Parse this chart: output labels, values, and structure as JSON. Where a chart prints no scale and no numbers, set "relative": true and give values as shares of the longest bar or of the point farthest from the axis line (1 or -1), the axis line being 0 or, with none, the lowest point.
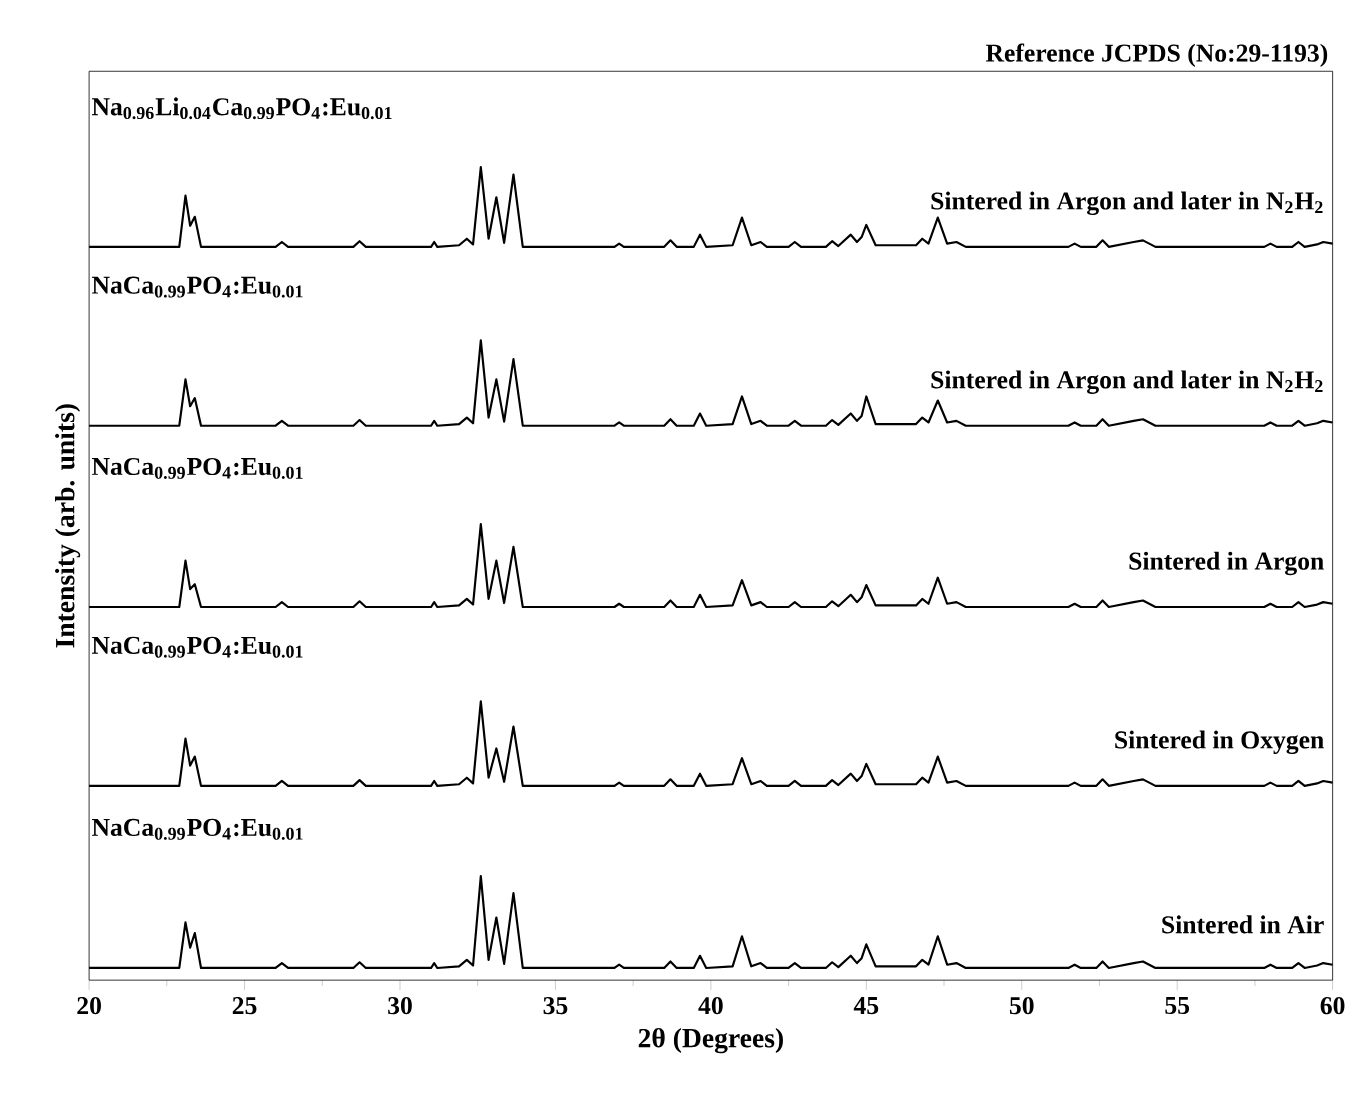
{
  "chart_data": {
    "type": "line",
    "relative": true,
    "xlabel": "2θ (Degrees)",
    "ylabel": "Intensity (arb. units)",
    "xlim": [
      20,
      60
    ],
    "xticks": [
      20,
      25,
      30,
      35,
      40,
      45,
      50,
      55,
      60
    ],
    "x": [
      20,
      22.9,
      23.1,
      23.25,
      23.4,
      23.6,
      26.0,
      26.2,
      26.4,
      28.5,
      28.7,
      28.9,
      31.0,
      31.1,
      31.2,
      31.9,
      32.15,
      32.35,
      32.6,
      32.85,
      33.1,
      33.35,
      33.65,
      33.95,
      36.9,
      37.05,
      37.2,
      38.5,
      38.7,
      38.9,
      39.45,
      39.65,
      39.85,
      40.7,
      41.0,
      41.3,
      41.6,
      41.8,
      42.5,
      42.7,
      42.9,
      43.7,
      43.9,
      44.1,
      44.5,
      44.7,
      44.85,
      45.0,
      45.3,
      46.6,
      46.8,
      47.0,
      47.3,
      47.6,
      47.9,
      48.2,
      51.5,
      51.7,
      51.9,
      52.4,
      52.6,
      52.8,
      53.6,
      53.9,
      54.3,
      57.8,
      58.0,
      58.2,
      58.7,
      58.9,
      59.1,
      59.5,
      59.7,
      60
    ],
    "series": [
      {
        "color": "#000000",
        "values": [
          0.015,
          0.015,
          0.071,
          0.04,
          0.058,
          0.015,
          0.015,
          0.021,
          0.015,
          0.015,
          0.022,
          0.015,
          0.015,
          0.021,
          0.015,
          0.017,
          0.025,
          0.018,
          0.128,
          0.025,
          0.077,
          0.02,
          0.107,
          0.015,
          0.015,
          0.019,
          0.015,
          0.015,
          0.023,
          0.015,
          0.015,
          0.03,
          0.015,
          0.017,
          0.054,
          0.017,
          0.021,
          0.015,
          0.015,
          0.021,
          0.015,
          0.015,
          0.022,
          0.016,
          0.03,
          0.021,
          0.027,
          0.044,
          0.017,
          0.017,
          0.025,
          0.019,
          0.054,
          0.019,
          0.021,
          0.015,
          0.015,
          0.019,
          0.015,
          0.015,
          0.023,
          0.015,
          0.021,
          0.023,
          0.015,
          0.015,
          0.019,
          0.015,
          0.015,
          0.021,
          0.015,
          0.018,
          0.021,
          0.019
        ]
      },
      {
        "color": "#000000",
        "values": [
          0.239,
          0.239,
          0.297,
          0.264,
          0.275,
          0.239,
          0.239,
          0.245,
          0.239,
          0.239,
          0.246,
          0.239,
          0.239,
          0.245,
          0.239,
          0.241,
          0.249,
          0.242,
          0.343,
          0.249,
          0.285,
          0.244,
          0.312,
          0.239,
          0.239,
          0.243,
          0.239,
          0.239,
          0.247,
          0.239,
          0.239,
          0.254,
          0.239,
          0.241,
          0.273,
          0.241,
          0.245,
          0.239,
          0.239,
          0.245,
          0.239,
          0.239,
          0.246,
          0.24,
          0.254,
          0.245,
          0.251,
          0.266,
          0.241,
          0.241,
          0.249,
          0.243,
          0.275,
          0.243,
          0.245,
          0.239,
          0.239,
          0.243,
          0.239,
          0.239,
          0.247,
          0.239,
          0.245,
          0.247,
          0.239,
          0.239,
          0.243,
          0.239,
          0.239,
          0.245,
          0.239,
          0.242,
          0.245,
          0.243
        ]
      },
      {
        "color": "#000000",
        "values": [
          0.459,
          0.459,
          0.516,
          0.481,
          0.487,
          0.459,
          0.459,
          0.465,
          0.459,
          0.459,
          0.466,
          0.459,
          0.459,
          0.465,
          0.459,
          0.461,
          0.469,
          0.462,
          0.561,
          0.469,
          0.516,
          0.464,
          0.533,
          0.459,
          0.459,
          0.463,
          0.459,
          0.459,
          0.467,
          0.459,
          0.459,
          0.474,
          0.459,
          0.461,
          0.492,
          0.461,
          0.465,
          0.459,
          0.459,
          0.465,
          0.459,
          0.459,
          0.466,
          0.46,
          0.474,
          0.465,
          0.471,
          0.486,
          0.461,
          0.461,
          0.469,
          0.463,
          0.495,
          0.463,
          0.465,
          0.459,
          0.459,
          0.463,
          0.459,
          0.459,
          0.467,
          0.459,
          0.465,
          0.467,
          0.459,
          0.459,
          0.463,
          0.459,
          0.459,
          0.465,
          0.459,
          0.462,
          0.465,
          0.463
        ]
      },
      {
        "color": "#000000",
        "values": [
          0.682,
          0.682,
          0.739,
          0.706,
          0.716,
          0.682,
          0.682,
          0.688,
          0.682,
          0.682,
          0.689,
          0.682,
          0.682,
          0.688,
          0.682,
          0.684,
          0.692,
          0.685,
          0.787,
          0.692,
          0.739,
          0.687,
          0.764,
          0.682,
          0.682,
          0.686,
          0.682,
          0.682,
          0.69,
          0.682,
          0.682,
          0.697,
          0.682,
          0.684,
          0.718,
          0.684,
          0.688,
          0.682,
          0.682,
          0.688,
          0.682,
          0.682,
          0.689,
          0.683,
          0.697,
          0.688,
          0.694,
          0.718,
          0.684,
          0.684,
          0.692,
          0.686,
          0.713,
          0.686,
          0.688,
          0.682,
          0.682,
          0.686,
          0.682,
          0.682,
          0.69,
          0.682,
          0.688,
          0.69,
          0.682,
          0.682,
          0.686,
          0.682,
          0.682,
          0.688,
          0.682,
          0.685,
          0.688,
          0.686
        ]
      },
      {
        "color": "#000000",
        "values": [
          0.902,
          0.902,
          0.965,
          0.928,
          0.939,
          0.902,
          0.902,
          0.908,
          0.902,
          0.902,
          0.909,
          0.902,
          0.902,
          0.908,
          0.902,
          0.904,
          0.912,
          0.905,
          1.0,
          0.912,
          0.963,
          0.907,
          0.991,
          0.902,
          0.902,
          0.906,
          0.902,
          0.902,
          0.91,
          0.902,
          0.902,
          0.917,
          0.902,
          0.904,
          0.938,
          0.904,
          0.908,
          0.902,
          0.902,
          0.908,
          0.902,
          0.902,
          0.909,
          0.903,
          0.917,
          0.908,
          0.914,
          0.929,
          0.904,
          0.904,
          0.912,
          0.906,
          0.938,
          0.906,
          0.908,
          0.902,
          0.902,
          0.906,
          0.902,
          0.902,
          0.91,
          0.902,
          0.908,
          0.91,
          0.902,
          0.902,
          0.906,
          0.902,
          0.902,
          0.908,
          0.902,
          0.905,
          0.908,
          0.906
        ]
      }
    ],
    "annotations": [
      "Reference JCPDS (No:29-1193)",
      "Na$_{0.96}$Li$_{0.04}$Ca$_{0.99}$PO$_{4}$:Eu$_{0.01}$",
      "Sintered in Argon and later in N$_{2}$H$_{2}$",
      "NaCa$_{0.99}$PO$_{4}$:Eu$_{0.01}$",
      "Sintered in Argon and later in N$_{2}$H$_{2}$",
      "NaCa$_{0.99}$PO$_{4}$:Eu$_{0.01}$",
      "Sintered in Argon",
      "NaCa$_{0.99}$PO$_{4}$:Eu$_{0.01}$",
      "Sintered in Oxygen",
      "NaCa$_{0.99}$PO$_{4}$:Eu$_{0.01}$",
      "Sintered in Air"
    ]
  }
}
